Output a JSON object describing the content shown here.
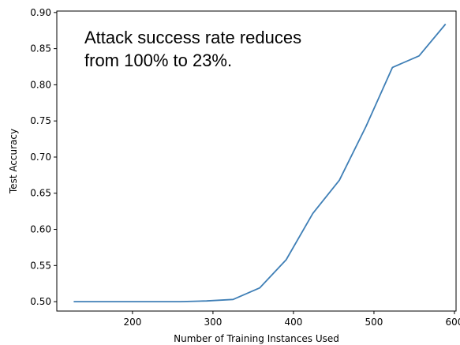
{
  "chart_data": {
    "type": "line",
    "title": "",
    "xlabel": "Number of Training Instances Used",
    "ylabel": "Test Accuracy",
    "xlim": [
      106,
      602
    ],
    "ylim": [
      0.487,
      0.902
    ],
    "xticks": [
      200,
      300,
      400,
      500,
      600
    ],
    "yticks": [
      0.5,
      0.55,
      0.6,
      0.65,
      0.7,
      0.75,
      0.8,
      0.85,
      0.9
    ],
    "grid": false,
    "line_color": "#3f7fb6",
    "annotation": "Attack success rate reduces from 100% to 23%.",
    "series": [
      {
        "x": [
          127,
          160,
          193,
          226,
          259,
          292,
          325,
          358,
          391,
          424,
          457,
          490,
          523,
          556,
          589
        ],
        "y": [
          0.5,
          0.5,
          0.5,
          0.5,
          0.5,
          0.501,
          0.503,
          0.519,
          0.558,
          0.622,
          0.668,
          0.742,
          0.824,
          0.84,
          0.884
        ]
      }
    ]
  }
}
